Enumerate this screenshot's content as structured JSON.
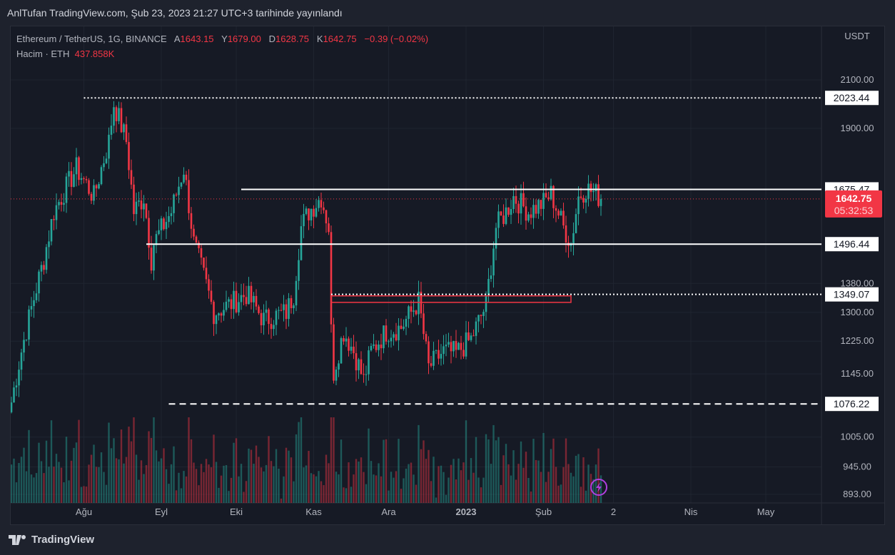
{
  "publication": "AnlTufan TradingView.com, Şub 23, 2023 21:27 UTC+3 tarihinde yayınlandı",
  "legend": {
    "symbol": "Ethereum / TetherUS, 1G, BINANCE",
    "open_label": "A",
    "open": "1643.15",
    "high_label": "Y",
    "high": "1679.00",
    "low_label": "D",
    "low": "1628.75",
    "close_label": "K",
    "close": "1642.75",
    "change": "−0.39 (−0.02%)",
    "volume_label": "Hacim · ETH",
    "volume": "437.858K"
  },
  "footer": {
    "brand": "TradingView"
  },
  "colors": {
    "up": "#26a69a",
    "down": "#f23645",
    "bg": "#161a25",
    "grid": "#1f2430",
    "line": "#ffffff"
  },
  "chart_data": {
    "type": "candlestick",
    "scale": "log",
    "currency": "USDT",
    "ylim": [
      893,
      2100
    ],
    "y_ticks": [
      "2100.00",
      "1900.00",
      "1380.00",
      "1300.00",
      "1225.00",
      "1145.00",
      "1005.00",
      "945.00",
      "893.00"
    ],
    "y_tick_values": [
      2100,
      1900,
      1380,
      1300,
      1225,
      1145,
      1005,
      945,
      893
    ],
    "x_ticks": [
      {
        "label": "Ağu",
        "day": 29
      },
      {
        "label": "Eyl",
        "day": 60
      },
      {
        "label": "Eki",
        "day": 90
      },
      {
        "label": "Kas",
        "day": 121
      },
      {
        "label": "Ara",
        "day": 151
      },
      {
        "label": "2023",
        "day": 182,
        "bold": true
      },
      {
        "label": "Şub",
        "day": 213
      },
      {
        "label": "2",
        "day": 241
      },
      {
        "label": "Nis",
        "day": 272
      },
      {
        "label": "May",
        "day": 302
      }
    ],
    "last_day": 236,
    "close_anchors": [
      [
        0,
        1080
      ],
      [
        4,
        1200
      ],
      [
        13,
        1450
      ],
      [
        17,
        1600
      ],
      [
        26,
        1750
      ],
      [
        33,
        1650
      ],
      [
        39,
        1850
      ],
      [
        41,
        2000
      ],
      [
        46,
        1850
      ],
      [
        49,
        1600
      ],
      [
        53,
        1650
      ],
      [
        56,
        1450
      ],
      [
        57,
        1500
      ],
      [
        64,
        1600
      ],
      [
        69,
        1750
      ],
      [
        73,
        1500
      ],
      [
        77,
        1400
      ],
      [
        81,
        1300
      ],
      [
        87,
        1320
      ],
      [
        94,
        1350
      ],
      [
        101,
        1280
      ],
      [
        110,
        1300
      ],
      [
        113,
        1350
      ],
      [
        116,
        1550
      ],
      [
        119,
        1600
      ],
      [
        124,
        1650
      ],
      [
        127,
        1550
      ],
      [
        128,
        1250
      ],
      [
        129,
        1150
      ],
      [
        133,
        1250
      ],
      [
        137,
        1200
      ],
      [
        141,
        1130
      ],
      [
        144,
        1200
      ],
      [
        150,
        1250
      ],
      [
        156,
        1260
      ],
      [
        163,
        1330
      ],
      [
        166,
        1200
      ],
      [
        167,
        1160
      ],
      [
        173,
        1200
      ],
      [
        178,
        1195
      ],
      [
        184,
        1230
      ],
      [
        190,
        1320
      ],
      [
        194,
        1550
      ],
      [
        198,
        1600
      ],
      [
        201,
        1650
      ],
      [
        207,
        1600
      ],
      [
        213,
        1630
      ],
      [
        216,
        1660
      ],
      [
        221,
        1550
      ],
      [
        224,
        1500
      ],
      [
        227,
        1650
      ],
      [
        230,
        1680
      ],
      [
        234,
        1660
      ],
      [
        236,
        1642.75
      ]
    ],
    "levels": [
      {
        "price": 2023.44,
        "label": "2023.44",
        "style": "dotted",
        "from_day": 29
      },
      {
        "price": 1675.47,
        "label": "1675.47",
        "style": "solid",
        "from_day": 92
      },
      {
        "price": 1496.44,
        "label": "1496.44",
        "style": "solid",
        "from_day": 54
      },
      {
        "price": 1349.07,
        "label": "1349.07",
        "style": "dotted",
        "from_day": 128
      },
      {
        "price": 1076.22,
        "label": "1076.22",
        "style": "dashed",
        "from_day": 63
      }
    ],
    "last_price": {
      "label": "1642.75",
      "countdown": "05:32:53",
      "price": 1642.75
    },
    "zone": {
      "from_day": 128,
      "to_day": 224,
      "top": 1345,
      "bottom": 1327
    }
  }
}
